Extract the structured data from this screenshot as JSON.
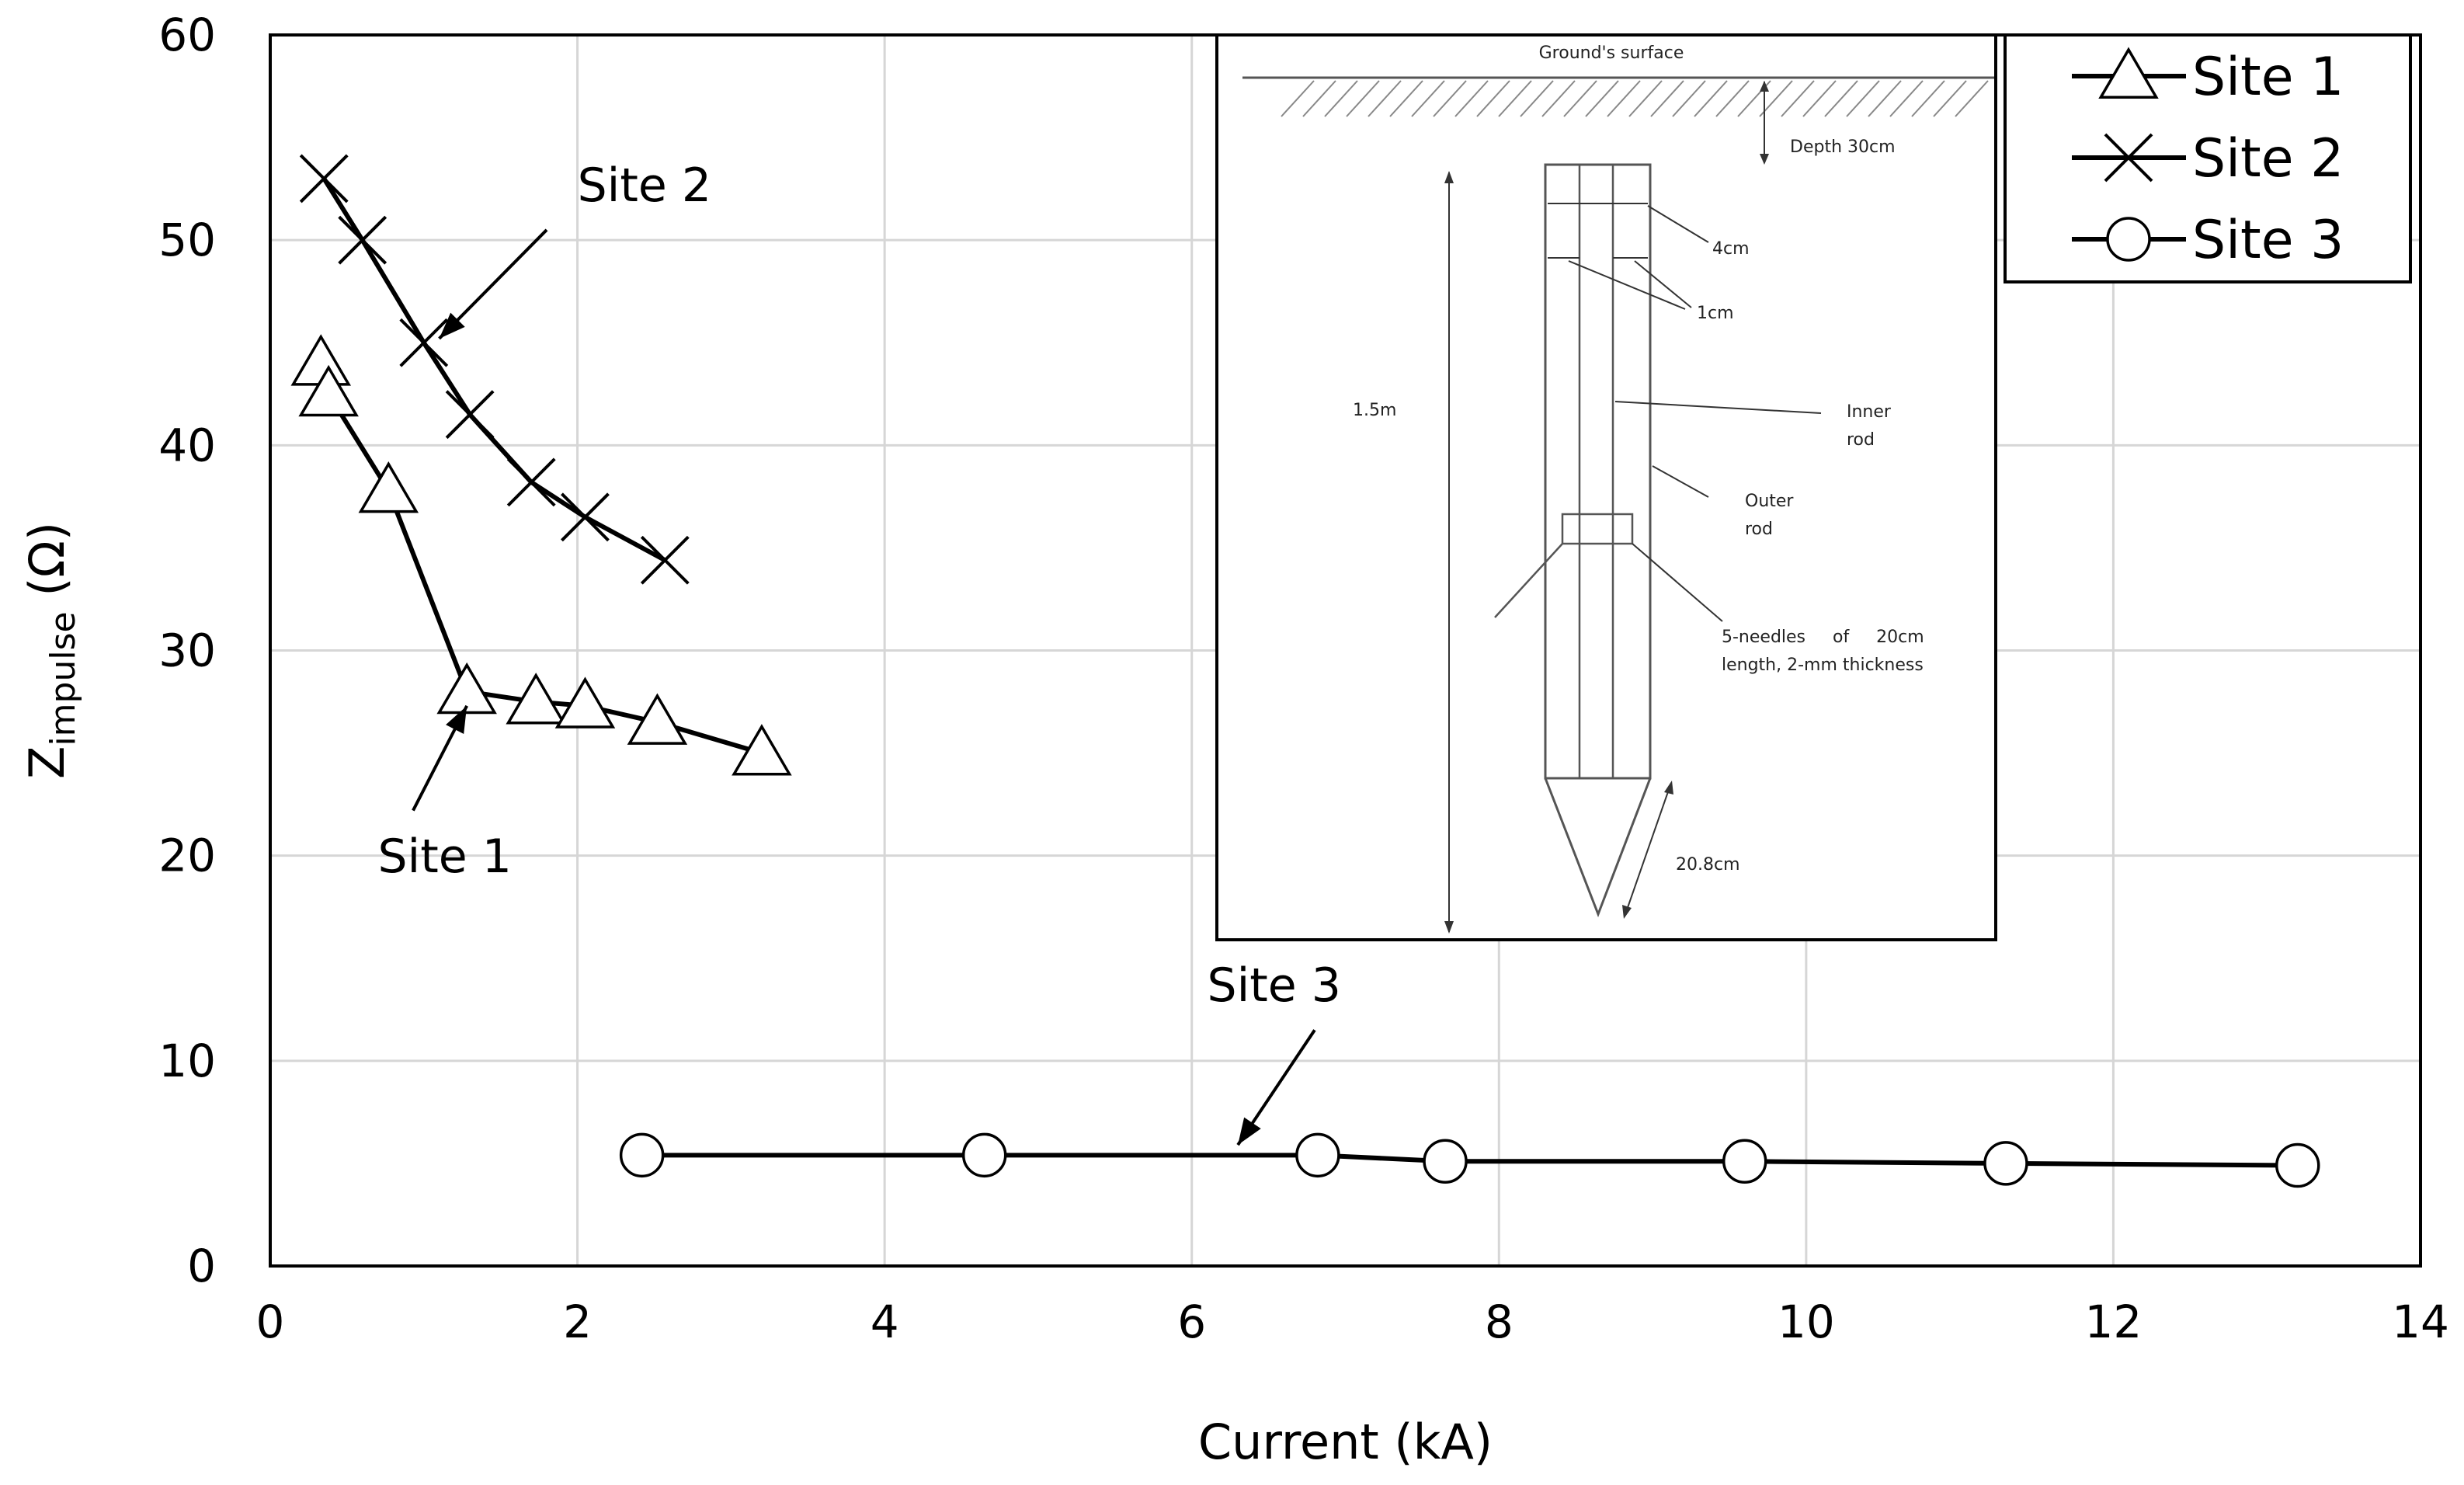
{
  "chart_data": {
    "type": "line",
    "xlabel": "Current (kA)",
    "ylabel_main": "Z",
    "ylabel_sub": "impulse",
    "ylabel_unit": " (Ω)",
    "xlim": [
      0,
      14
    ],
    "ylim": [
      0,
      60
    ],
    "x_ticks": [
      0,
      2,
      4,
      6,
      8,
      10,
      12,
      14
    ],
    "y_ticks": [
      0,
      10,
      20,
      30,
      40,
      50,
      60
    ],
    "grid": true,
    "legend_position": "top-right",
    "series": [
      {
        "name": "Site 1",
        "marker": "triangle",
        "x": [
          0.33,
          0.38,
          0.77,
          1.28,
          1.73,
          2.05,
          2.52,
          3.2
        ],
        "y": [
          44,
          42.5,
          37.8,
          28,
          27.5,
          27.3,
          26.5,
          25
        ]
      },
      {
        "name": "Site 2",
        "marker": "x",
        "x": [
          0.35,
          0.6,
          1.0,
          1.3,
          1.7,
          2.05,
          2.57
        ],
        "y": [
          53,
          50,
          45,
          41.5,
          38.2,
          36.5,
          34.4
        ]
      },
      {
        "name": "Site 3",
        "marker": "circle",
        "x": [
          2.42,
          4.65,
          6.82,
          7.65,
          9.6,
          11.3,
          13.2
        ],
        "y": [
          5.4,
          5.4,
          5.4,
          5.1,
          5.1,
          5.0,
          4.9
        ]
      }
    ],
    "annotations": [
      {
        "text": "Site 2",
        "series": "Site 2",
        "text_x": 2.0,
        "text_y": 51.9,
        "arrow_from_x": 1.8,
        "arrow_from_y": 50.5,
        "arrow_to_x": 1.1,
        "arrow_to_y": 45.2
      },
      {
        "text": "Site 1",
        "series": "Site 1",
        "text_x": 0.7,
        "text_y": 19.2,
        "arrow_from_x": 0.93,
        "arrow_from_y": 22.2,
        "arrow_to_x": 1.28,
        "arrow_to_y": 27.3
      },
      {
        "text": "Site 3",
        "series": "Site 3",
        "text_x": 6.1,
        "text_y": 12.9,
        "arrow_from_x": 6.8,
        "arrow_from_y": 11.5,
        "arrow_to_x": 6.3,
        "arrow_to_y": 5.9
      }
    ],
    "inset": {
      "ground_label": "Ground's surface",
      "depth_label": "Depth 30cm",
      "rod_width_label": "4cm",
      "wall_label": "1cm",
      "length_label": "1.5m",
      "inner_rod_line1": "Inner",
      "inner_rod_line2": "rod",
      "outer_rod_line1": "Outer",
      "outer_rod_line2": "rod",
      "needles_line1": "5-needles     of     20cm",
      "needles_line2": "length, 2-mm thickness",
      "tip_label": "20.8cm"
    }
  }
}
